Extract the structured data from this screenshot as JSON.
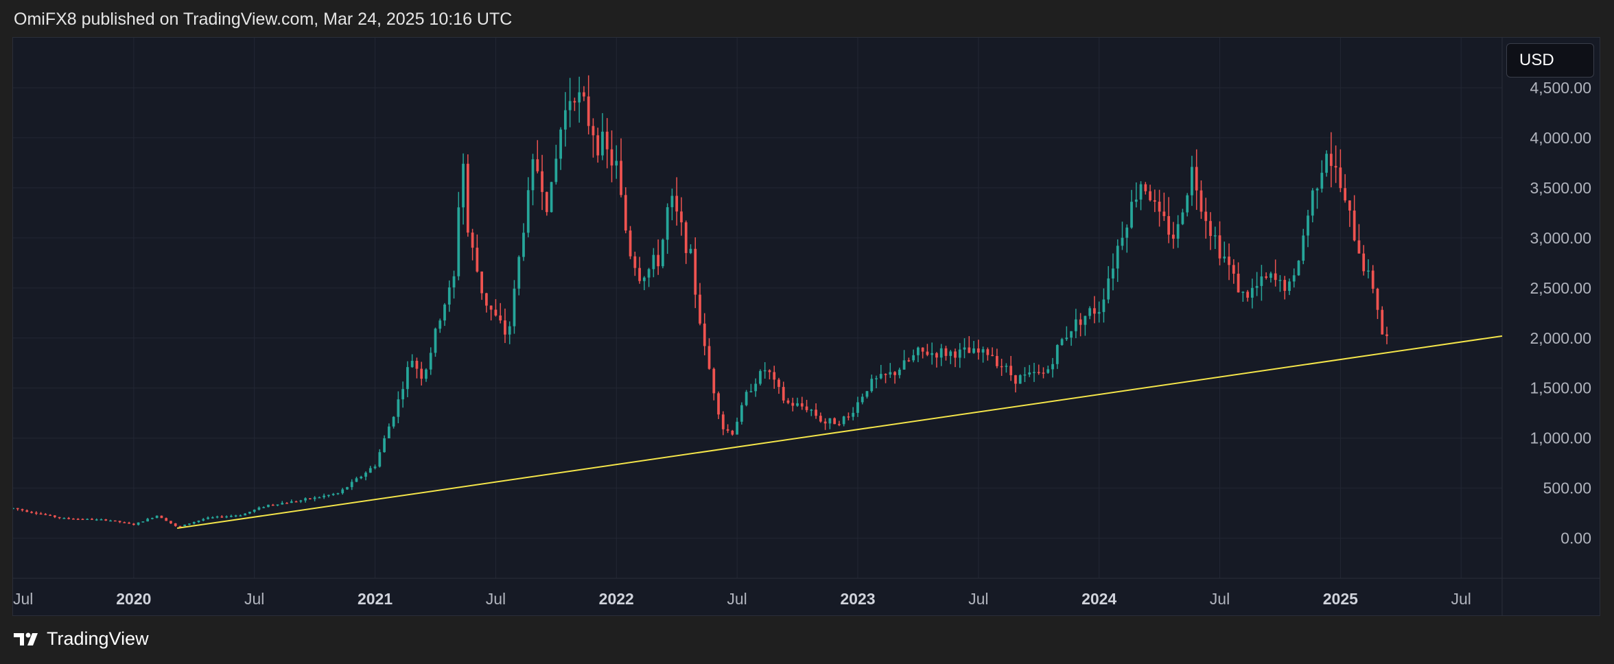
{
  "header": {
    "text": "OmiFX8 published on TradingView.com, Mar 24, 2025 10:16 UTC"
  },
  "currency": {
    "label": "USD"
  },
  "footer": {
    "brand": "TradingView"
  },
  "colors": {
    "up": "#26a69a",
    "down": "#ef5350",
    "trendline": "#f5e64a",
    "grid": "#232734",
    "background": "#161a25"
  },
  "chart_data": {
    "type": "candlestick",
    "interval": "weekly",
    "y_axis": {
      "ticks": [
        0,
        500,
        1000,
        1500,
        2000,
        2500,
        3000,
        3500,
        4000,
        4500
      ],
      "tick_labels": [
        "0.00",
        "500.00",
        "1,000.00",
        "1,500.00",
        "2,000.00",
        "2,500.00",
        "3,000.00",
        "3,500.00",
        "4,000.00",
        "4,500.00"
      ],
      "ylim": [
        -400,
        5000
      ],
      "position": "right"
    },
    "x_axis": {
      "ticks": [
        {
          "label": "Jul",
          "x": 2019.5,
          "bold": false
        },
        {
          "label": "2020",
          "x": 2020.0,
          "bold": true
        },
        {
          "label": "Jul",
          "x": 2020.5,
          "bold": false
        },
        {
          "label": "2021",
          "x": 2021.0,
          "bold": true
        },
        {
          "label": "Jul",
          "x": 2021.5,
          "bold": false
        },
        {
          "label": "2022",
          "x": 2022.0,
          "bold": true
        },
        {
          "label": "Jul",
          "x": 2022.5,
          "bold": false
        },
        {
          "label": "2023",
          "x": 2023.0,
          "bold": true
        },
        {
          "label": "Jul",
          "x": 2023.5,
          "bold": false
        },
        {
          "label": "2024",
          "x": 2024.0,
          "bold": true
        },
        {
          "label": "Jul",
          "x": 2024.5,
          "bold": false
        },
        {
          "label": "2025",
          "x": 2025.0,
          "bold": true
        },
        {
          "label": "Jul",
          "x": 2025.5,
          "bold": false
        }
      ],
      "xlim": [
        2019.5,
        2025.67
      ]
    },
    "price_keypoints": [
      [
        2019.5,
        300
      ],
      [
        2019.7,
        200
      ],
      [
        2019.9,
        180
      ],
      [
        2020.0,
        135
      ],
      [
        2020.1,
        230
      ],
      [
        2020.18,
        110
      ],
      [
        2020.3,
        200
      ],
      [
        2020.45,
        235
      ],
      [
        2020.55,
        330
      ],
      [
        2020.7,
        380
      ],
      [
        2020.85,
        450
      ],
      [
        2021.0,
        730
      ],
      [
        2021.1,
        1400
      ],
      [
        2021.15,
        1800
      ],
      [
        2021.2,
        1600
      ],
      [
        2021.28,
        2300
      ],
      [
        2021.33,
        2600
      ],
      [
        2021.36,
        4000
      ],
      [
        2021.38,
        3100
      ],
      [
        2021.45,
        2400
      ],
      [
        2021.55,
        2000
      ],
      [
        2021.62,
        3200
      ],
      [
        2021.66,
        3800
      ],
      [
        2021.72,
        3300
      ],
      [
        2021.77,
        4100
      ],
      [
        2021.82,
        4550
      ],
      [
        2021.86,
        4300
      ],
      [
        2021.92,
        4000
      ],
      [
        2022.0,
        3700
      ],
      [
        2022.05,
        2900
      ],
      [
        2022.1,
        2600
      ],
      [
        2022.18,
        2800
      ],
      [
        2022.22,
        3400
      ],
      [
        2022.3,
        2900
      ],
      [
        2022.36,
        1950
      ],
      [
        2022.44,
        1100
      ],
      [
        2022.48,
        1050
      ],
      [
        2022.55,
        1500
      ],
      [
        2022.62,
        1700
      ],
      [
        2022.7,
        1350
      ],
      [
        2022.8,
        1300
      ],
      [
        2022.86,
        1150
      ],
      [
        2022.96,
        1200
      ],
      [
        2023.05,
        1550
      ],
      [
        2023.15,
        1650
      ],
      [
        2023.25,
        1850
      ],
      [
        2023.35,
        1850
      ],
      [
        2023.45,
        1850
      ],
      [
        2023.55,
        1850
      ],
      [
        2023.65,
        1600
      ],
      [
        2023.78,
        1650
      ],
      [
        2023.85,
        2000
      ],
      [
        2023.92,
        2200
      ],
      [
        2024.0,
        2300
      ],
      [
        2024.1,
        3100
      ],
      [
        2024.18,
        3600
      ],
      [
        2024.25,
        3200
      ],
      [
        2024.32,
        3000
      ],
      [
        2024.38,
        3700
      ],
      [
        2024.46,
        3100
      ],
      [
        2024.52,
        2800
      ],
      [
        2024.6,
        2400
      ],
      [
        2024.7,
        2600
      ],
      [
        2024.8,
        2500
      ],
      [
        2024.88,
        3400
      ],
      [
        2024.94,
        3900
      ],
      [
        2025.0,
        3500
      ],
      [
        2025.06,
        3000
      ],
      [
        2025.1,
        2700
      ],
      [
        2025.14,
        2500
      ],
      [
        2025.18,
        1950
      ],
      [
        2025.21,
        2050
      ]
    ],
    "trendline": {
      "points": [
        [
          2020.18,
          100
        ],
        [
          2025.67,
          2020
        ]
      ]
    },
    "last_close": 2060
  }
}
